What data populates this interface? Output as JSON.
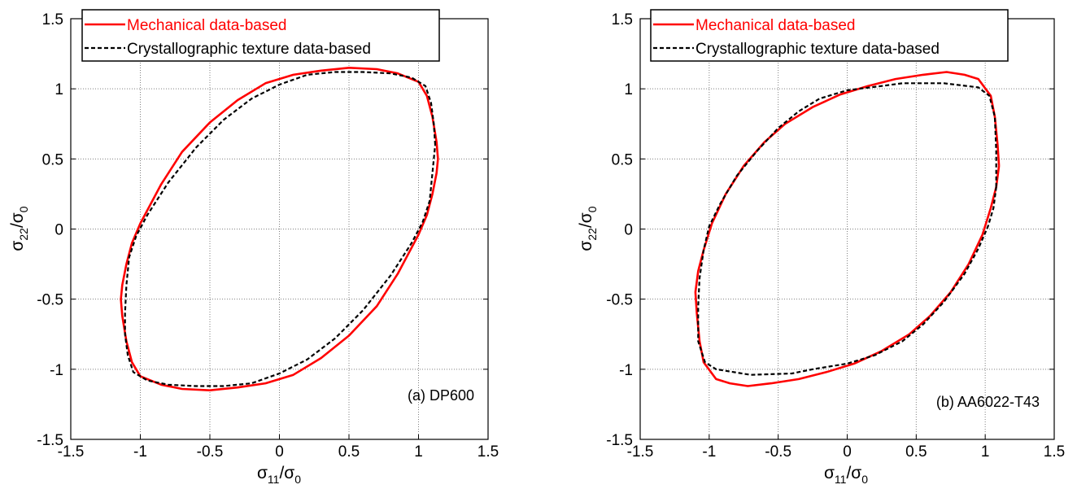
{
  "chart_data": [
    {
      "type": "line",
      "annotation": "(a) DP600",
      "xlabel": {
        "main": "σ",
        "sub": "11",
        "mid": "/σ",
        "sub2": "0"
      },
      "ylabel": {
        "main": "σ",
        "sub": "22",
        "mid": "/σ",
        "sub2": "0"
      },
      "xlim": [
        -1.5,
        1.5
      ],
      "ylim": [
        -1.5,
        1.5
      ],
      "ticks": [
        -1.5,
        -1,
        -0.5,
        0,
        0.5,
        1,
        1.5
      ],
      "tick_labels": [
        "-1.5",
        "-1",
        "-0.5",
        "0",
        "0.5",
        "1",
        "1.5"
      ],
      "grid": true,
      "legend_position": "top",
      "series": [
        {
          "name": "Mechanical data-based",
          "color": "#ff0000",
          "style": "solid",
          "points": [
            [
              1.14,
              0.5
            ],
            [
              1.13,
              0.62
            ],
            [
              1.1,
              0.8
            ],
            [
              1.06,
              0.95
            ],
            [
              1.0,
              1.05
            ],
            [
              0.85,
              1.11
            ],
            [
              0.7,
              1.14
            ],
            [
              0.5,
              1.15
            ],
            [
              0.3,
              1.13
            ],
            [
              0.1,
              1.1
            ],
            [
              -0.1,
              1.04
            ],
            [
              -0.3,
              0.92
            ],
            [
              -0.5,
              0.76
            ],
            [
              -0.7,
              0.55
            ],
            [
              -0.85,
              0.32
            ],
            [
              -1.0,
              0.04
            ],
            [
              -1.06,
              -0.1
            ],
            [
              -1.1,
              -0.25
            ],
            [
              -1.13,
              -0.4
            ],
            [
              -1.14,
              -0.5
            ],
            [
              -1.13,
              -0.62
            ],
            [
              -1.1,
              -0.8
            ],
            [
              -1.06,
              -0.95
            ],
            [
              -1.0,
              -1.05
            ],
            [
              -0.85,
              -1.11
            ],
            [
              -0.7,
              -1.14
            ],
            [
              -0.5,
              -1.15
            ],
            [
              -0.3,
              -1.13
            ],
            [
              -0.1,
              -1.1
            ],
            [
              0.1,
              -1.04
            ],
            [
              0.3,
              -0.92
            ],
            [
              0.5,
              -0.76
            ],
            [
              0.7,
              -0.55
            ],
            [
              0.85,
              -0.32
            ],
            [
              1.0,
              -0.04
            ],
            [
              1.06,
              0.1
            ],
            [
              1.1,
              0.25
            ],
            [
              1.13,
              0.4
            ],
            [
              1.14,
              0.5
            ]
          ]
        },
        {
          "name": "Crystallographic texture data-based",
          "color": "#000000",
          "style": "dashed",
          "points": [
            [
              1.12,
              0.6
            ],
            [
              1.11,
              0.75
            ],
            [
              1.09,
              0.9
            ],
            [
              1.05,
              1.02
            ],
            [
              0.95,
              1.08
            ],
            [
              0.8,
              1.11
            ],
            [
              0.6,
              1.12
            ],
            [
              0.4,
              1.12
            ],
            [
              0.2,
              1.1
            ],
            [
              0.0,
              1.03
            ],
            [
              -0.2,
              0.93
            ],
            [
              -0.4,
              0.78
            ],
            [
              -0.6,
              0.58
            ],
            [
              -0.8,
              0.33
            ],
            [
              -0.95,
              0.1
            ],
            [
              -1.03,
              -0.05
            ],
            [
              -1.08,
              -0.2
            ],
            [
              -1.1,
              -0.4
            ],
            [
              -1.11,
              -0.6
            ],
            [
              -1.11,
              -0.75
            ],
            [
              -1.09,
              -0.9
            ],
            [
              -1.05,
              -1.02
            ],
            [
              -0.95,
              -1.08
            ],
            [
              -0.8,
              -1.11
            ],
            [
              -0.6,
              -1.12
            ],
            [
              -0.4,
              -1.12
            ],
            [
              -0.2,
              -1.1
            ],
            [
              0.0,
              -1.03
            ],
            [
              0.2,
              -0.93
            ],
            [
              0.4,
              -0.78
            ],
            [
              0.6,
              -0.58
            ],
            [
              0.8,
              -0.33
            ],
            [
              0.95,
              -0.1
            ],
            [
              1.03,
              0.05
            ],
            [
              1.08,
              0.2
            ],
            [
              1.1,
              0.4
            ],
            [
              1.12,
              0.6
            ]
          ]
        }
      ]
    },
    {
      "type": "line",
      "annotation": "(b) AA6022-T43",
      "xlabel": {
        "main": "σ",
        "sub": "11",
        "mid": "/σ",
        "sub2": "0"
      },
      "ylabel": {
        "main": "σ",
        "sub": "22",
        "mid": "/σ",
        "sub2": "0"
      },
      "xlim": [
        -1.5,
        1.5
      ],
      "ylim": [
        -1.5,
        1.5
      ],
      "ticks": [
        -1.5,
        -1,
        -0.5,
        0,
        0.5,
        1,
        1.5
      ],
      "tick_labels": [
        "-1.5",
        "-1",
        "-0.5",
        "0",
        "0.5",
        "1",
        "1.5"
      ],
      "grid": true,
      "legend_position": "top",
      "series": [
        {
          "name": "Mechanical data-based",
          "color": "#ff0000",
          "style": "solid",
          "points": [
            [
              1.1,
              0.45
            ],
            [
              1.09,
              0.6
            ],
            [
              1.07,
              0.8
            ],
            [
              1.04,
              0.95
            ],
            [
              0.95,
              1.07
            ],
            [
              0.85,
              1.1
            ],
            [
              0.72,
              1.12
            ],
            [
              0.55,
              1.1
            ],
            [
              0.35,
              1.07
            ],
            [
              0.15,
              1.02
            ],
            [
              -0.05,
              0.96
            ],
            [
              -0.25,
              0.87
            ],
            [
              -0.45,
              0.75
            ],
            [
              -0.6,
              0.62
            ],
            [
              -0.75,
              0.45
            ],
            [
              -0.88,
              0.25
            ],
            [
              -0.98,
              0.04
            ],
            [
              -1.04,
              -0.15
            ],
            [
              -1.08,
              -0.3
            ],
            [
              -1.1,
              -0.45
            ],
            [
              -1.09,
              -0.6
            ],
            [
              -1.07,
              -0.8
            ],
            [
              -1.04,
              -0.95
            ],
            [
              -0.95,
              -1.07
            ],
            [
              -0.85,
              -1.1
            ],
            [
              -0.72,
              -1.12
            ],
            [
              -0.55,
              -1.1
            ],
            [
              -0.35,
              -1.07
            ],
            [
              -0.15,
              -1.02
            ],
            [
              0.05,
              -0.96
            ],
            [
              0.25,
              -0.87
            ],
            [
              0.45,
              -0.75
            ],
            [
              0.6,
              -0.62
            ],
            [
              0.75,
              -0.45
            ],
            [
              0.88,
              -0.25
            ],
            [
              0.98,
              -0.04
            ],
            [
              1.04,
              0.15
            ],
            [
              1.08,
              0.3
            ],
            [
              1.1,
              0.45
            ]
          ]
        },
        {
          "name": "Crystallographic texture data-based",
          "color": "#000000",
          "style": "dashed",
          "points": [
            [
              1.08,
              0.3
            ],
            [
              1.08,
              0.55
            ],
            [
              1.07,
              0.8
            ],
            [
              1.03,
              0.95
            ],
            [
              0.95,
              1.01
            ],
            [
              0.7,
              1.04
            ],
            [
              0.4,
              1.04
            ],
            [
              0.25,
              1.02
            ],
            [
              0.0,
              0.99
            ],
            [
              -0.2,
              0.93
            ],
            [
              -0.35,
              0.84
            ],
            [
              -0.5,
              0.72
            ],
            [
              -0.65,
              0.56
            ],
            [
              -0.8,
              0.38
            ],
            [
              -0.92,
              0.18
            ],
            [
              -1.0,
              0.02
            ],
            [
              -1.04,
              -0.15
            ],
            [
              -1.07,
              -0.35
            ],
            [
              -1.08,
              -0.55
            ],
            [
              -1.08,
              -0.8
            ],
            [
              -1.03,
              -0.95
            ],
            [
              -0.95,
              -1.0
            ],
            [
              -0.7,
              -1.04
            ],
            [
              -0.4,
              -1.03
            ],
            [
              -0.25,
              -1.0
            ],
            [
              0.0,
              -0.96
            ],
            [
              0.2,
              -0.9
            ],
            [
              0.4,
              -0.8
            ],
            [
              0.55,
              -0.68
            ],
            [
              0.7,
              -0.52
            ],
            [
              0.85,
              -0.32
            ],
            [
              0.95,
              -0.14
            ],
            [
              1.02,
              0.02
            ],
            [
              1.06,
              0.15
            ],
            [
              1.08,
              0.3
            ]
          ]
        }
      ]
    }
  ]
}
